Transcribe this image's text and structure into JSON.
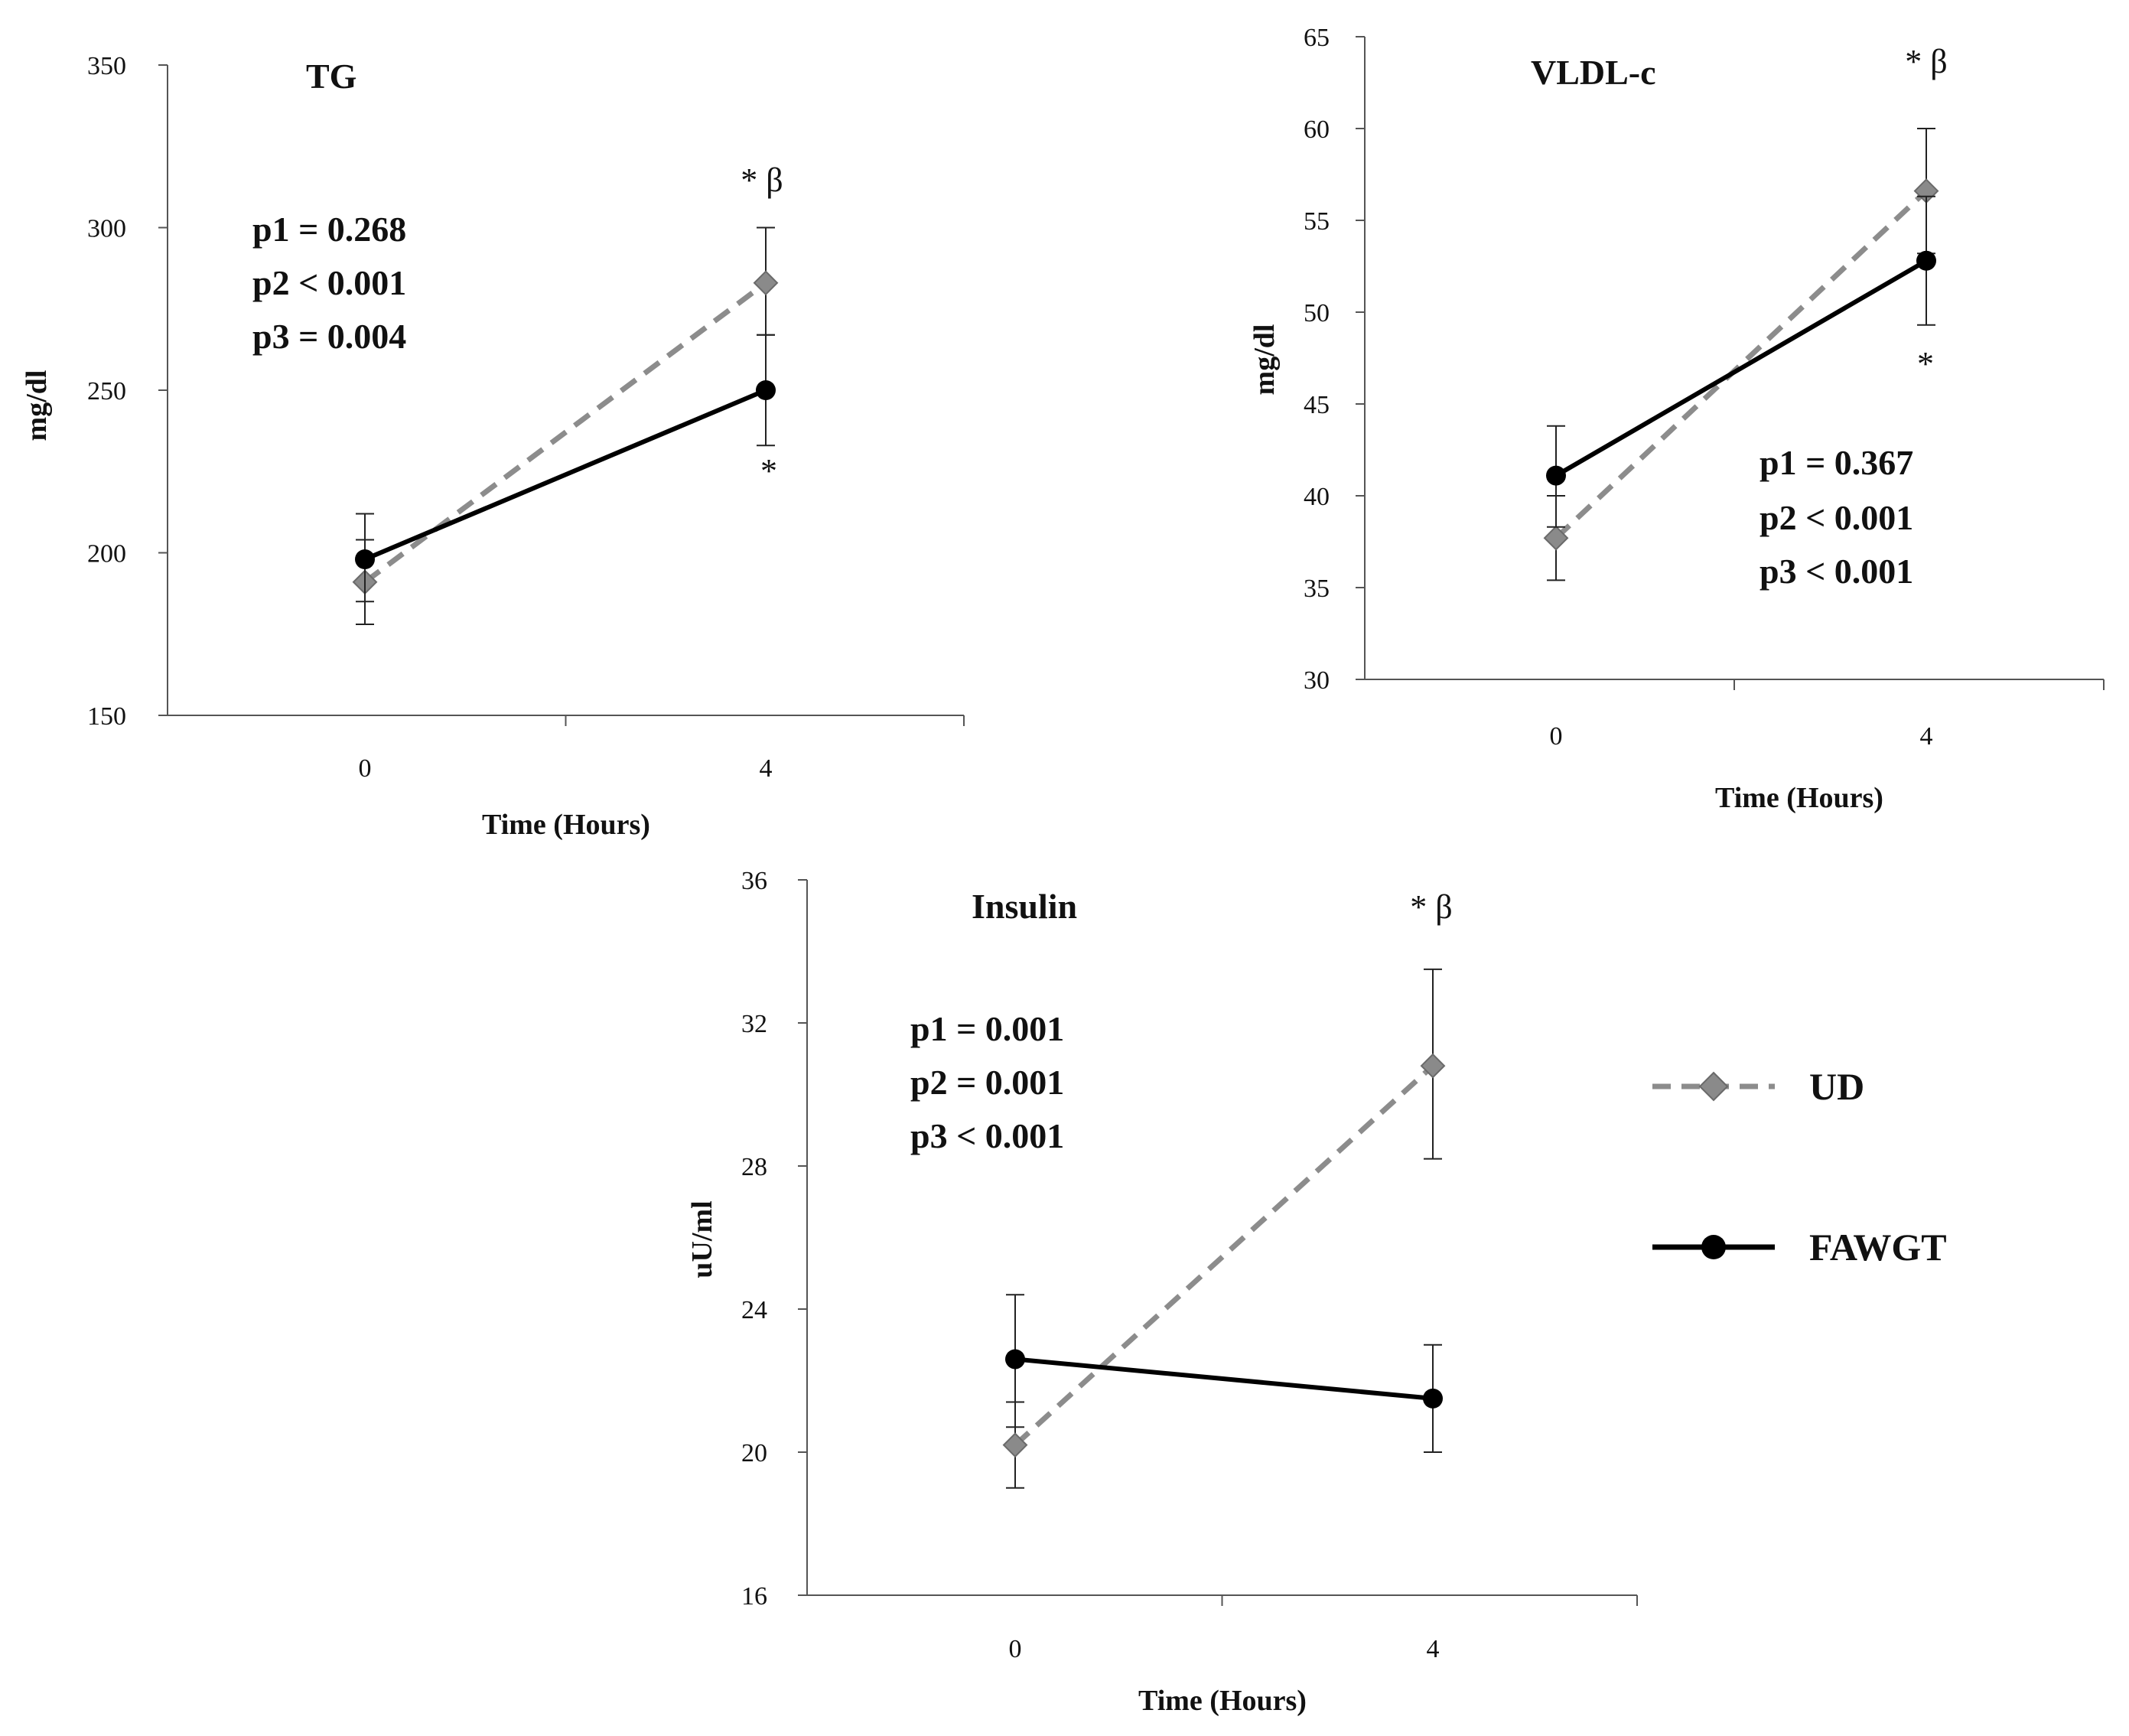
{
  "chart_data": [
    {
      "type": "line",
      "title": "TG",
      "xlabel": "Time (Hours)",
      "ylabel": "mg/dl",
      "categories": [
        "0",
        "4"
      ],
      "ylim": [
        150,
        350
      ],
      "yticks": [
        150,
        200,
        250,
        300,
        350
      ],
      "series": [
        {
          "name": "UD",
          "values": [
            191,
            283
          ],
          "err_low": [
            178,
            267
          ],
          "err_high": [
            204,
            300
          ]
        },
        {
          "name": "FAWGT",
          "values": [
            198,
            250
          ],
          "err_low": [
            185,
            233
          ],
          "err_high": [
            212,
            267
          ]
        }
      ],
      "annotations": {
        "top_label": "* β",
        "bottom_label": "*",
        "pvalues": [
          "p1 = 0.268",
          "p2 < 0.001",
          "p3 = 0.004"
        ]
      }
    },
    {
      "type": "line",
      "title": "VLDL-c",
      "xlabel": "Time (Hours)",
      "ylabel": "mg/dl",
      "categories": [
        "0",
        "4"
      ],
      "ylim": [
        30,
        65
      ],
      "yticks": [
        30,
        35,
        40,
        45,
        50,
        55,
        60,
        65
      ],
      "series": [
        {
          "name": "UD",
          "values": [
            37.7,
            56.6
          ],
          "err_low": [
            35.4,
            53.2
          ],
          "err_high": [
            40.0,
            60.0
          ]
        },
        {
          "name": "FAWGT",
          "values": [
            41.1,
            52.8
          ],
          "err_low": [
            38.3,
            49.3
          ],
          "err_high": [
            43.8,
            56.3
          ]
        }
      ],
      "annotations": {
        "top_label": "* β",
        "bottom_label": "*",
        "pvalues": [
          "p1 = 0.367",
          "p2 < 0.001",
          "p3 < 0.001"
        ]
      }
    },
    {
      "type": "line",
      "title": "Insulin",
      "xlabel": "Time (Hours)",
      "ylabel": "uU/ml",
      "categories": [
        "0",
        "4"
      ],
      "ylim": [
        16,
        36
      ],
      "yticks": [
        16,
        20,
        24,
        28,
        32,
        36
      ],
      "series": [
        {
          "name": "UD",
          "values": [
            20.2,
            30.8
          ],
          "err_low": [
            19.0,
            28.2
          ],
          "err_high": [
            21.4,
            33.5
          ]
        },
        {
          "name": "FAWGT",
          "values": [
            22.6,
            21.5
          ],
          "err_low": [
            20.7,
            20.0
          ],
          "err_high": [
            24.4,
            23.0
          ]
        }
      ],
      "annotations": {
        "top_label": "* β",
        "pvalues": [
          "p1 = 0.001",
          "p2 = 0.001",
          "p3 < 0.001"
        ]
      }
    }
  ],
  "legend": {
    "items": [
      {
        "name": "UD",
        "style": "dashed-diamond",
        "color": "#8c8c8c"
      },
      {
        "name": "FAWGT",
        "style": "solid-circle",
        "color": "#000000"
      }
    ]
  },
  "colors": {
    "ud_line": "#8c8c8c",
    "ud_marker": "#8a8a8a",
    "fawgt_line": "#000000",
    "axis": "#555555"
  }
}
